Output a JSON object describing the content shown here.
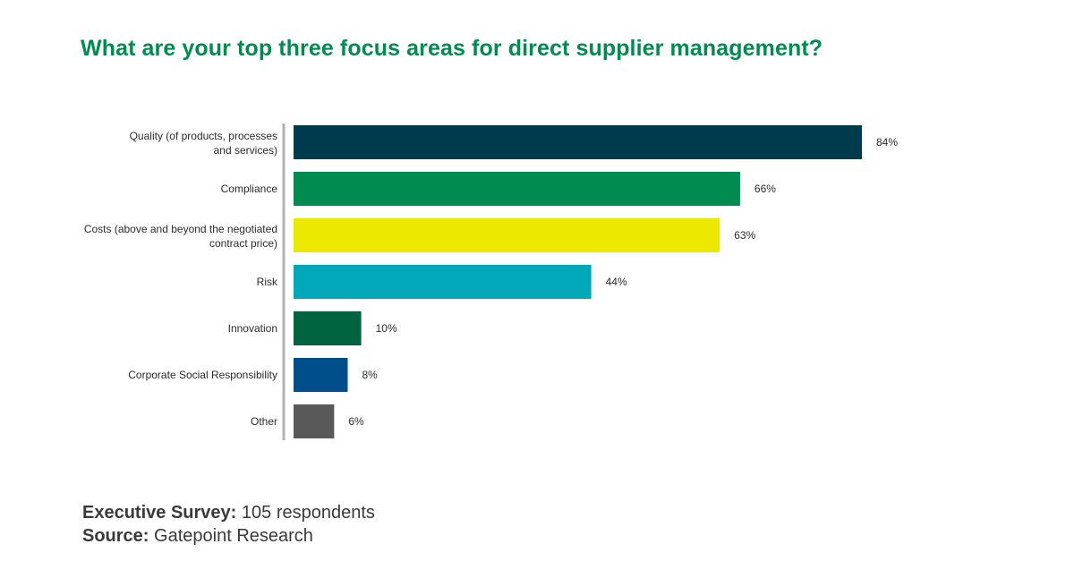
{
  "chart_data": {
    "type": "bar",
    "orientation": "horizontal",
    "title": "What are your top three focus areas for direct supplier management?",
    "categories": [
      [
        "Quality (of products, processes",
        "and services)"
      ],
      [
        "Compliance"
      ],
      [
        "Costs (above and beyond the negotiated",
        "contract price)"
      ],
      [
        "Risk"
      ],
      [
        "Innovation"
      ],
      [
        "Corporate Social Responsibility"
      ],
      [
        "Other"
      ]
    ],
    "values": [
      84,
      66,
      63,
      44,
      10,
      8,
      6
    ],
    "value_labels": [
      "84%",
      "66%",
      "63%",
      "44%",
      "10%",
      "8%",
      "6%"
    ],
    "colors": [
      "#003a4d",
      "#008b50",
      "#ece800",
      "#00a8b9",
      "#006440",
      "#004f8a",
      "#595959"
    ],
    "unit": "%",
    "xlim": [
      0,
      100
    ],
    "grid": false,
    "legend": "none"
  },
  "footer": {
    "survey_label": "Executive Survey:",
    "survey_value": "105 respondents",
    "source_label": "Source:",
    "source_value": "Gatepoint Research"
  }
}
